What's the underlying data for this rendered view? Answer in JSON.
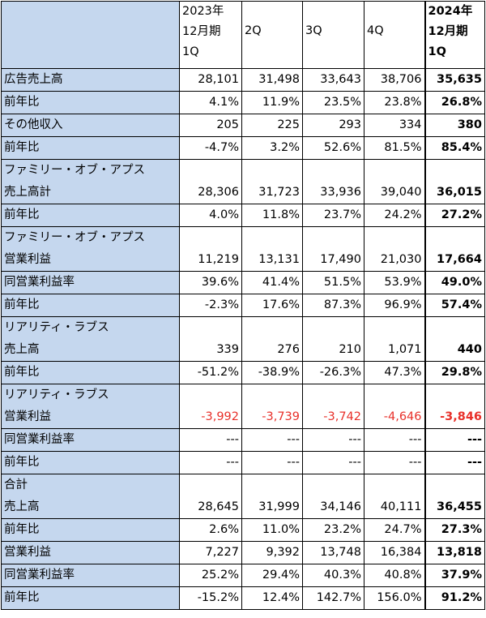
{
  "header": {
    "q1_2023": [
      "2023年",
      "12月期",
      "1Q"
    ],
    "q2": "2Q",
    "q3": "3Q",
    "q4": "4Q",
    "q1_2024": [
      "2024年",
      "12月期",
      "1Q"
    ]
  },
  "rows": [
    {
      "label": "広告売上高",
      "v": [
        "28,101",
        "31,498",
        "33,643",
        "38,706",
        "35,635"
      ]
    },
    {
      "label": "前年比",
      "v": [
        "4.1%",
        "11.9%",
        "23.5%",
        "23.8%",
        "26.8%"
      ]
    },
    {
      "label": "その他収入",
      "v": [
        "205",
        "225",
        "293",
        "334",
        "380"
      ]
    },
    {
      "label": "前年比",
      "v": [
        "-4.7%",
        "3.2%",
        "52.6%",
        "81.5%",
        "85.4%"
      ]
    },
    {
      "label": "ファミリー・オブ・アプス",
      "v": [
        "",
        "",
        "",
        "",
        ""
      ]
    },
    {
      "label": "売上高計",
      "v": [
        "28,306",
        "31,723",
        "33,936",
        "39,040",
        "36,015"
      ]
    },
    {
      "label": "前年比",
      "v": [
        "4.0%",
        "11.8%",
        "23.7%",
        "24.2%",
        "27.2%"
      ]
    },
    {
      "label": "ファミリー・オブ・アプス",
      "v": [
        "",
        "",
        "",
        "",
        ""
      ]
    },
    {
      "label": "営業利益",
      "v": [
        "11,219",
        "13,131",
        "17,490",
        "21,030",
        "17,664"
      ]
    },
    {
      "label": "同営業利益率",
      "v": [
        "39.6%",
        "41.4%",
        "51.5%",
        "53.9%",
        "49.0%"
      ]
    },
    {
      "label": "前年比",
      "v": [
        "-2.3%",
        "17.6%",
        "87.3%",
        "96.9%",
        "57.4%"
      ]
    },
    {
      "label": "リアリティ・ラブス",
      "v": [
        "",
        "",
        "",
        "",
        ""
      ]
    },
    {
      "label": "売上高",
      "v": [
        "339",
        "276",
        "210",
        "1,071",
        "440"
      ]
    },
    {
      "label": "前年比",
      "v": [
        "-51.2%",
        "-38.9%",
        "-26.3%",
        "47.3%",
        "29.8%"
      ]
    },
    {
      "label": "リアリティ・ラブス",
      "v": [
        "",
        "",
        "",
        "",
        ""
      ]
    },
    {
      "label": "営業利益",
      "v": [
        "-3,992",
        "-3,739",
        "-3,742",
        "-4,646",
        "-3,846"
      ]
    },
    {
      "label": "同営業利益率",
      "v": [
        "---",
        "---",
        "---",
        "---",
        "---"
      ]
    },
    {
      "label": "前年比",
      "v": [
        "---",
        "---",
        "---",
        "---",
        "---"
      ]
    },
    {
      "label": "合計",
      "v": [
        "",
        "",
        "",
        "",
        ""
      ]
    },
    {
      "label": "売上高",
      "v": [
        "28,645",
        "31,999",
        "34,146",
        "40,111",
        "36,455"
      ]
    },
    {
      "label": "前年比",
      "v": [
        "2.6%",
        "11.0%",
        "23.2%",
        "24.7%",
        "27.3%"
      ]
    },
    {
      "label": "営業利益",
      "v": [
        "7,227",
        "9,392",
        "13,748",
        "16,384",
        "13,818"
      ]
    },
    {
      "label": "同営業利益率",
      "v": [
        "25.2%",
        "29.4%",
        "40.3%",
        "40.8%",
        "37.9%"
      ]
    },
    {
      "label": "前年比",
      "v": [
        "-15.2%",
        "12.4%",
        "142.7%",
        "156.0%",
        "91.2%"
      ]
    }
  ],
  "colors": {
    "label_bg": "#c5d7ee",
    "negative": "#e8302a"
  }
}
